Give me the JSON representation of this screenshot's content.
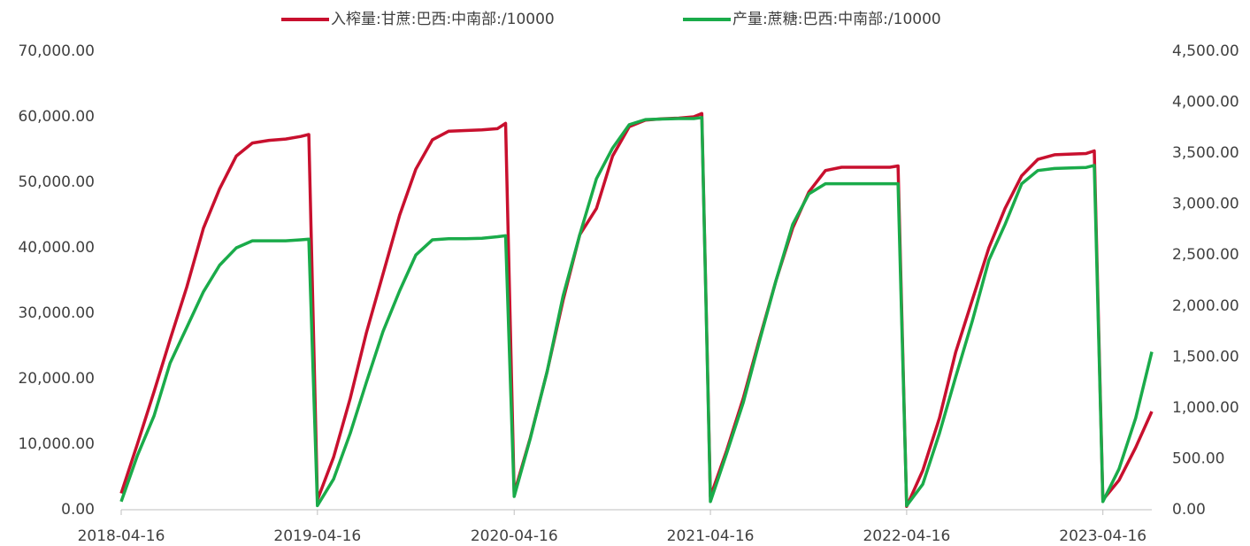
{
  "chart_data": {
    "type": "line",
    "x": [
      "2018-04-16",
      "2018-05-16",
      "2018-06-16",
      "2018-07-16",
      "2018-08-16",
      "2018-09-16",
      "2018-10-16",
      "2018-11-16",
      "2018-12-16",
      "2019-01-16",
      "2019-02-16",
      "2019-03-16",
      "2019-03-31",
      "2019-04-16",
      "2019-05-16",
      "2019-06-16",
      "2019-07-16",
      "2019-08-16",
      "2019-09-16",
      "2019-10-16",
      "2019-11-16",
      "2019-12-16",
      "2020-01-16",
      "2020-02-16",
      "2020-03-16",
      "2020-03-31",
      "2020-04-16",
      "2020-05-16",
      "2020-06-16",
      "2020-07-16",
      "2020-08-16",
      "2020-09-16",
      "2020-10-16",
      "2020-11-16",
      "2020-12-16",
      "2021-01-16",
      "2021-02-16",
      "2021-03-16",
      "2021-03-31",
      "2021-04-16",
      "2021-05-16",
      "2021-06-16",
      "2021-07-16",
      "2021-08-16",
      "2021-09-16",
      "2021-10-16",
      "2021-11-16",
      "2021-12-16",
      "2022-01-16",
      "2022-02-16",
      "2022-03-16",
      "2022-03-31",
      "2022-04-16",
      "2022-05-16",
      "2022-06-16",
      "2022-07-16",
      "2022-08-16",
      "2022-09-16",
      "2022-10-16",
      "2022-11-16",
      "2022-12-16",
      "2023-01-16",
      "2023-02-16",
      "2023-03-16",
      "2023-03-31",
      "2023-04-16",
      "2023-05-16",
      "2023-06-16",
      "2023-07-16"
    ],
    "series": [
      {
        "name": "入榨量:甘蔗:巴西:中南部:/10000",
        "color": "#c8102e",
        "axis": "y",
        "values": [
          2500,
          10000,
          18000,
          26000,
          34000,
          43000,
          49000,
          54000,
          56000,
          56400,
          56600,
          57000,
          57300,
          1500,
          8000,
          17000,
          27000,
          36000,
          45000,
          52000,
          56500,
          57800,
          57900,
          58000,
          58200,
          59000,
          2500,
          11000,
          21000,
          32000,
          42000,
          46000,
          54000,
          58500,
          59500,
          59700,
          59800,
          60000,
          60500,
          2000,
          9000,
          17000,
          26000,
          35000,
          43000,
          48500,
          51800,
          52300,
          52300,
          52300,
          52300,
          52500,
          500,
          6000,
          14000,
          24000,
          32000,
          40000,
          46000,
          51000,
          53500,
          54200,
          54300,
          54400,
          54800,
          1500,
          4500,
          9500,
          15000
        ]
      },
      {
        "name": "产量:蔗糖:巴西:中南部:/10000",
        "color": "#1aab4a",
        "axis": "y2",
        "values": [
          80,
          530,
          920,
          1440,
          1790,
          2140,
          2400,
          2570,
          2640,
          2640,
          2640,
          2650,
          2656,
          40,
          300,
          750,
          1250,
          1750,
          2150,
          2500,
          2650,
          2660,
          2660,
          2665,
          2680,
          2690,
          130,
          700,
          1350,
          2100,
          2700,
          3250,
          3550,
          3780,
          3830,
          3835,
          3840,
          3840,
          3850,
          80,
          550,
          1050,
          1650,
          2250,
          2800,
          3100,
          3200,
          3200,
          3200,
          3200,
          3200,
          3200,
          40,
          250,
          750,
          1300,
          1850,
          2450,
          2800,
          3200,
          3330,
          3350,
          3355,
          3360,
          3380,
          80,
          400,
          900,
          1550
        ]
      }
    ],
    "xlim": [
      "2018-04-16",
      "2023-07-16"
    ],
    "xticks": [
      "2018-04-16",
      "2019-04-16",
      "2020-04-16",
      "2021-04-16",
      "2022-04-16",
      "2023-04-16"
    ],
    "ylim": [
      0,
      70000
    ],
    "yticks": [
      {
        "value": 0,
        "label": "0.00"
      },
      {
        "value": 10000,
        "label": "10,000.00"
      },
      {
        "value": 20000,
        "label": "20,000.00"
      },
      {
        "value": 30000,
        "label": "30,000.00"
      },
      {
        "value": 40000,
        "label": "40,000.00"
      },
      {
        "value": 50000,
        "label": "50,000.00"
      },
      {
        "value": 60000,
        "label": "60,000.00"
      },
      {
        "value": 70000,
        "label": "70,000.00"
      }
    ],
    "y2lim": [
      0,
      4500
    ],
    "y2ticks": [
      {
        "value": 0,
        "label": "0.00"
      },
      {
        "value": 500,
        "label": "500.00"
      },
      {
        "value": 1000,
        "label": "1,000.00"
      },
      {
        "value": 1500,
        "label": "1,500.00"
      },
      {
        "value": 2000,
        "label": "2,000.00"
      },
      {
        "value": 2500,
        "label": "2,500.00"
      },
      {
        "value": 3000,
        "label": "3,000.00"
      },
      {
        "value": 3500,
        "label": "3,500.00"
      },
      {
        "value": 4000,
        "label": "4,000.00"
      },
      {
        "value": 4500,
        "label": "4,500.00"
      }
    ],
    "legend": "top"
  }
}
